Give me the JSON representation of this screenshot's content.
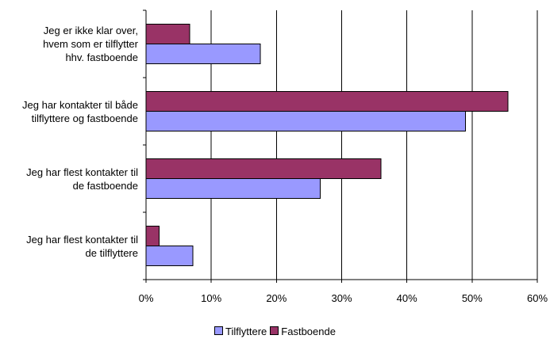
{
  "chart_data": {
    "type": "bar",
    "orientation": "horizontal",
    "categories": [
      [
        "Jeg er ikke klar over,",
        "hvem som er tilflytter",
        "hhv. fastboende"
      ],
      [
        "Jeg har kontakter til både",
        "tilflyttere og fastboende"
      ],
      [
        "Jeg har flest kontakter til",
        "de fastboende"
      ],
      [
        "Jeg har flest kontakter til",
        "de tilflyttere"
      ]
    ],
    "series": [
      {
        "name": "Tilflyttere",
        "color": "#9999ff",
        "values": [
          17.5,
          49,
          26.7,
          7.2
        ]
      },
      {
        "name": "Fastboende",
        "color": "#993366",
        "values": [
          6.7,
          55.5,
          36,
          2
        ]
      }
    ],
    "xlim": [
      0,
      60
    ],
    "xticks": [
      "0%",
      "10%",
      "20%",
      "30%",
      "40%",
      "50%",
      "60%"
    ],
    "grid": true,
    "legend": "bottom"
  }
}
